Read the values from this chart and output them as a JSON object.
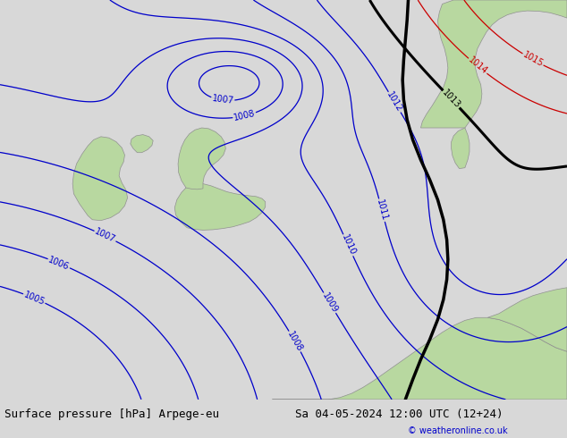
{
  "title_left": "Surface pressure [hPa] Arpege-eu",
  "title_right": "Sa 04-05-2024 12:00 UTC (12+24)",
  "copyright": "© weatheronline.co.uk",
  "sea_color": "#c8d4e0",
  "land_color": "#b8d8a0",
  "land_edge_color": "#909090",
  "contour_color_blue": "#0000cc",
  "contour_color_black": "#000000",
  "contour_color_red": "#cc0000",
  "contour_color_gray": "#888888",
  "font_size_label": 7,
  "font_size_footer": 9,
  "footer_bg": "#d8d8d8",
  "levels_blue": [
    1005,
    1006,
    1007,
    1008,
    1009,
    1010,
    1011,
    1012
  ],
  "levels_black": [
    1013
  ],
  "levels_red": [
    1014,
    1015
  ]
}
